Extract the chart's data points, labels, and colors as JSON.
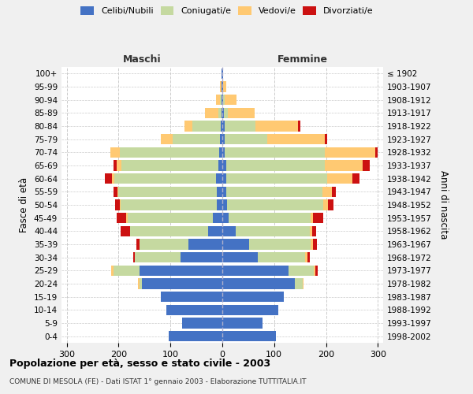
{
  "age_groups": [
    "0-4",
    "5-9",
    "10-14",
    "15-19",
    "20-24",
    "25-29",
    "30-34",
    "35-39",
    "40-44",
    "45-49",
    "50-54",
    "55-59",
    "60-64",
    "65-69",
    "70-74",
    "75-79",
    "80-84",
    "85-89",
    "90-94",
    "95-99",
    "100+"
  ],
  "birth_years": [
    "1998-2002",
    "1993-1997",
    "1988-1992",
    "1983-1987",
    "1978-1982",
    "1973-1977",
    "1968-1972",
    "1963-1967",
    "1958-1962",
    "1953-1957",
    "1948-1952",
    "1943-1947",
    "1938-1942",
    "1933-1937",
    "1928-1932",
    "1923-1927",
    "1918-1922",
    "1913-1917",
    "1908-1912",
    "1903-1907",
    "≤ 1902"
  ],
  "maschi": {
    "celibi": [
      103,
      78,
      108,
      118,
      155,
      160,
      80,
      65,
      28,
      18,
      10,
      10,
      12,
      8,
      6,
      4,
      3,
      2,
      1,
      1,
      1
    ],
    "coniugati": [
      0,
      0,
      0,
      0,
      4,
      50,
      88,
      95,
      150,
      165,
      186,
      190,
      196,
      186,
      192,
      92,
      55,
      6,
      3,
      1,
      0
    ],
    "vedovi": [
      0,
      0,
      0,
      0,
      4,
      4,
      0,
      0,
      0,
      2,
      2,
      2,
      4,
      10,
      18,
      22,
      15,
      25,
      8,
      2,
      0
    ],
    "divorziati": [
      0,
      0,
      0,
      0,
      0,
      0,
      4,
      6,
      18,
      18,
      8,
      8,
      14,
      5,
      0,
      0,
      0,
      0,
      0,
      0,
      0
    ]
  },
  "femmine": {
    "nubili": [
      103,
      78,
      108,
      118,
      140,
      128,
      68,
      52,
      26,
      12,
      9,
      8,
      8,
      8,
      5,
      4,
      4,
      3,
      2,
      1,
      1
    ],
    "coniugate": [
      0,
      0,
      0,
      0,
      15,
      48,
      92,
      118,
      143,
      158,
      185,
      185,
      194,
      190,
      192,
      82,
      60,
      8,
      3,
      1,
      0
    ],
    "vedove": [
      0,
      0,
      0,
      0,
      2,
      4,
      4,
      4,
      4,
      4,
      10,
      18,
      48,
      72,
      98,
      112,
      82,
      52,
      22,
      5,
      1
    ],
    "divorziate": [
      0,
      0,
      0,
      0,
      0,
      4,
      4,
      8,
      8,
      20,
      10,
      8,
      14,
      14,
      4,
      4,
      4,
      0,
      0,
      0,
      0
    ]
  },
  "colors": {
    "celibi_nubili": "#4472c4",
    "coniugati": "#c5d9a0",
    "vedovi": "#ffc972",
    "divorziati": "#cc1111"
  },
  "xlim": 310,
  "title": "Popolazione per età, sesso e stato civile - 2003",
  "subtitle": "COMUNE DI MESOLA (FE) - Dati ISTAT 1° gennaio 2003 - Elaborazione TUTTITALIA.IT",
  "ylabel_left": "Fasce di età",
  "ylabel_right": "Anni di nascita",
  "xlabel_left": "Maschi",
  "xlabel_right": "Femmine",
  "bg_color": "#f0f0f0",
  "plot_bg": "#ffffff"
}
